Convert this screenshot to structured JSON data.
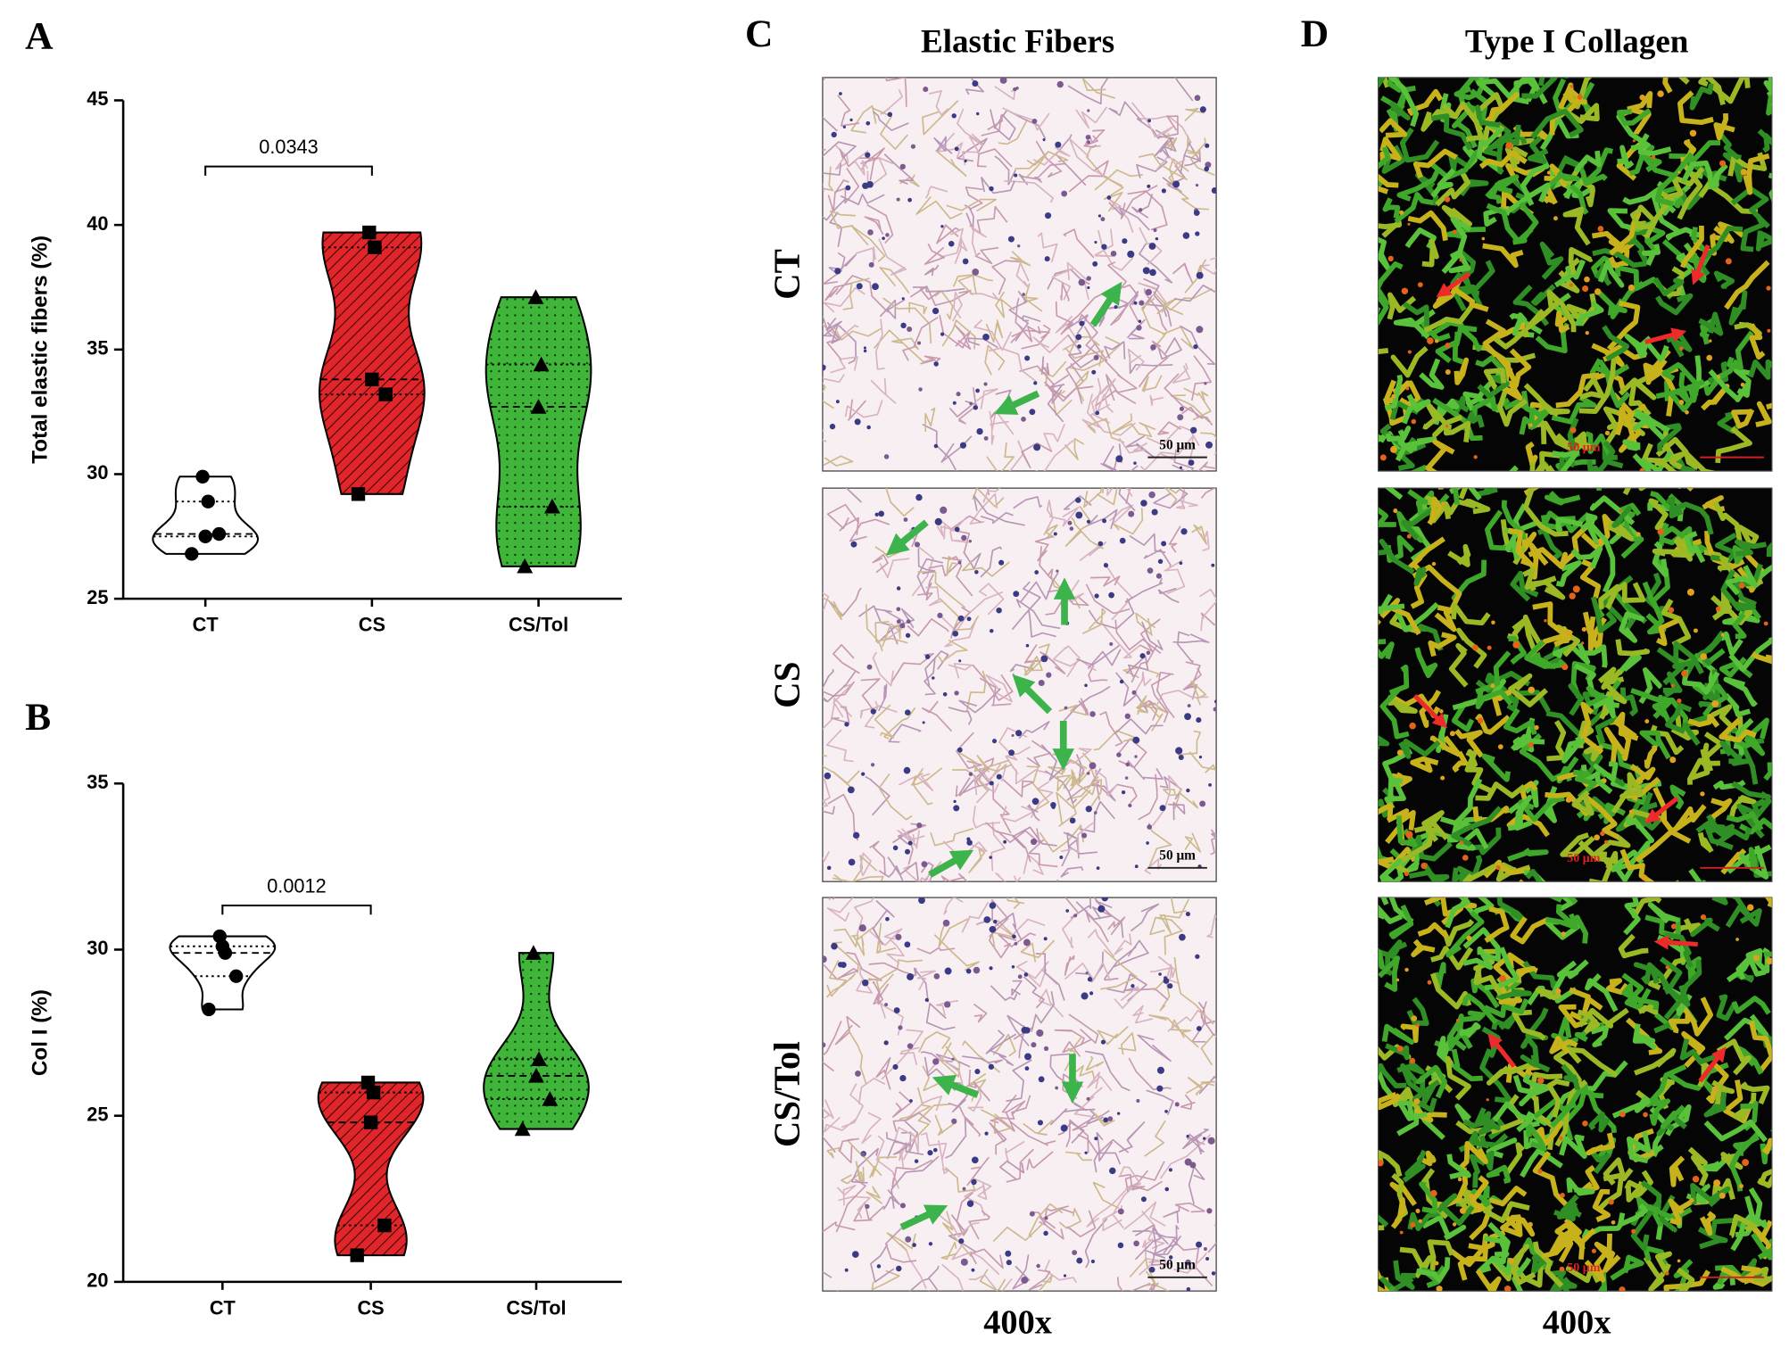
{
  "chart_data": [
    {
      "type": "violin",
      "panel": "A",
      "ylabel": "Total elastic fibers (%)",
      "categories": [
        "CT",
        "CS",
        "CS/Tol"
      ],
      "colors": [
        "#ffffff",
        "#e0262a",
        "#3fb53a"
      ],
      "markers": [
        "circle",
        "square",
        "triangle"
      ],
      "values": [
        [
          29.9,
          28.9,
          27.5,
          27.6,
          26.8
        ],
        [
          39.7,
          39.1,
          33.8,
          33.2,
          29.2
        ],
        [
          37.1,
          34.4,
          32.7,
          28.7,
          26.3
        ]
      ],
      "ylim": [
        25,
        45
      ],
      "yticks": [
        25,
        30,
        35,
        40,
        45
      ],
      "annotation": "0.0343"
    },
    {
      "type": "violin",
      "panel": "B",
      "ylabel": "Col I (%)",
      "categories": [
        "CT",
        "CS",
        "CS/Tol"
      ],
      "colors": [
        "#ffffff",
        "#e0262a",
        "#3fb53a"
      ],
      "markers": [
        "circle",
        "square",
        "triangle"
      ],
      "values": [
        [
          30.4,
          29.9,
          30.1,
          29.2,
          28.2
        ],
        [
          26.0,
          25.7,
          24.8,
          21.7,
          20.8
        ],
        [
          29.9,
          26.7,
          26.2,
          25.5,
          24.6
        ]
      ],
      "ylim": [
        20,
        35
      ],
      "yticks": [
        20,
        25,
        30,
        35
      ],
      "annotation": "0.0012"
    }
  ],
  "panels": [
    {
      "label": "C",
      "title": "Elastic Fibers",
      "rows": [
        "CT",
        "CS",
        "CS/Tol"
      ],
      "magnification": "400x",
      "scale_bar": "50 μm"
    },
    {
      "label": "D",
      "title": "Type I Collagen",
      "magnification": "400x",
      "scale_bar": "50 μm"
    }
  ]
}
